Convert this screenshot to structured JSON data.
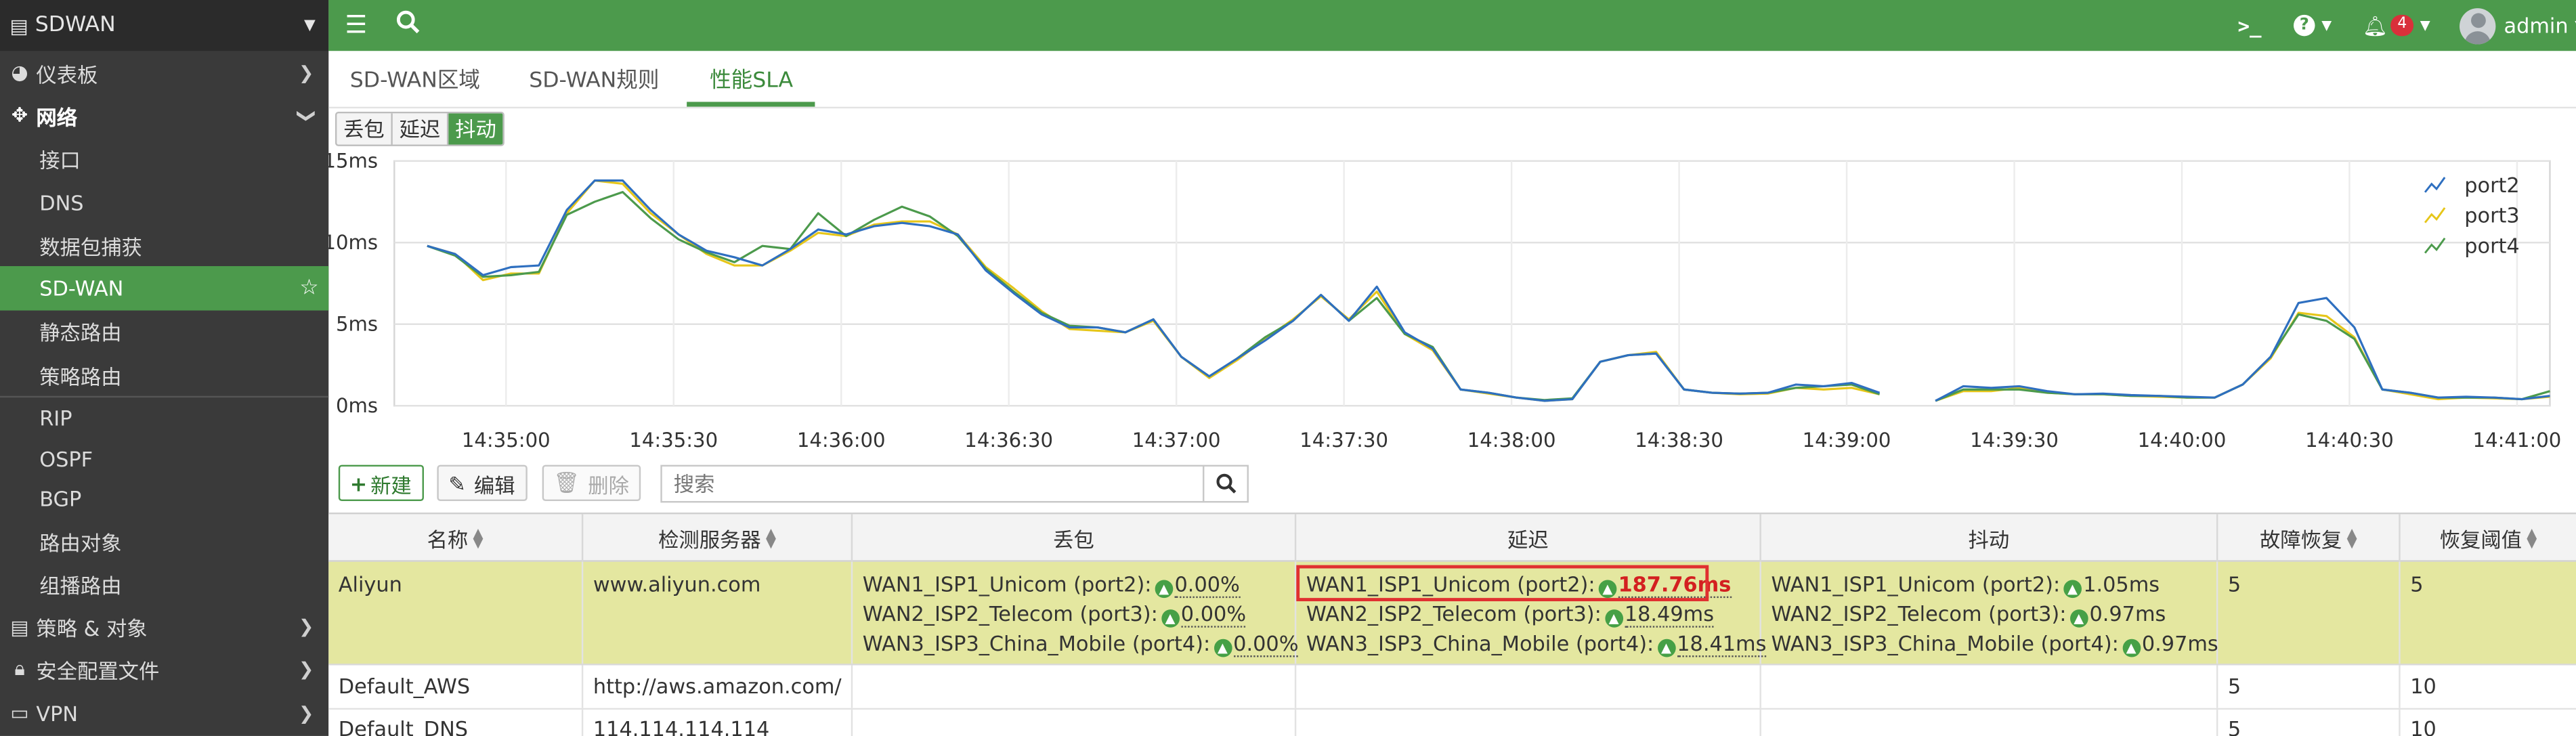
{
  "sidebar": {
    "header": "SDWAN",
    "items": [
      {
        "label": "仪表板",
        "icon": "dashboard-icon"
      },
      {
        "label": "网络",
        "icon": "network-icon"
      },
      {
        "label": "接口"
      },
      {
        "label": "DNS"
      },
      {
        "label": "数据包捕获"
      },
      {
        "label": "SD-WAN"
      },
      {
        "label": "静态路由"
      },
      {
        "label": "策略路由"
      },
      {
        "label": "RIP"
      },
      {
        "label": "OSPF"
      },
      {
        "label": "BGP"
      },
      {
        "label": "路由对象"
      },
      {
        "label": "组播路由"
      },
      {
        "label": "策略 & 对象",
        "icon": "policy-icon"
      },
      {
        "label": "安全配置文件",
        "icon": "lock-icon"
      },
      {
        "label": "VPN",
        "icon": "vpn-icon"
      }
    ]
  },
  "topbar": {
    "notification_count": "4",
    "user": "admin"
  },
  "tabs": [
    "SD-WAN区域",
    "SD-WAN规则",
    "性能SLA"
  ],
  "metric_buttons": [
    "丢包",
    "延迟",
    "抖动"
  ],
  "toolbar": {
    "new_label": "新建",
    "edit_label": "编辑",
    "delete_label": "删除",
    "search_placeholder": "搜索"
  },
  "table": {
    "headers": [
      "名称",
      "检测服务器",
      "丢包",
      "延迟",
      "抖动",
      "故障恢复",
      "恢复阈值"
    ],
    "rows": [
      {
        "name": "Aliyun",
        "server": "www.aliyun.com",
        "loss": [
          {
            "label": "WAN1_ISP1_Unicom (port2):",
            "value": "0.00%"
          },
          {
            "label": "WAN2_ISP2_Telecom (port3):",
            "value": "0.00%"
          },
          {
            "label": "WAN3_ISP3_China_Mobile (port4):",
            "value": "0.00%"
          }
        ],
        "latency": [
          {
            "label": "WAN1_ISP1_Unicom (port2):",
            "value": "187.76ms"
          },
          {
            "label": "WAN2_ISP2_Telecom (port3):",
            "value": "18.49ms"
          },
          {
            "label": "WAN3_ISP3_China_Mobile (port4):",
            "value": "18.41ms"
          }
        ],
        "jitter": [
          {
            "label": "WAN1_ISP1_Unicom (port2):",
            "value": "1.05ms"
          },
          {
            "label": "WAN2_ISP2_Telecom (port3):",
            "value": "0.97ms"
          },
          {
            "label": "WAN3_ISP3_China_Mobile (port4):",
            "value": "0.97ms"
          }
        ],
        "failures": "5",
        "restore": "5"
      },
      {
        "name": "Default_AWS",
        "server": "http://aws.amazon.com/",
        "failures": "5",
        "restore": "10"
      },
      {
        "name": "Default_DNS",
        "server": "114.114.114.114",
        "failures": "5",
        "restore": "10"
      }
    ]
  },
  "colors": {
    "port2": "#2e6fc0",
    "port3": "#e6c619",
    "port4": "#4c9a4c",
    "accent": "#4c9a4c"
  },
  "chart_data": {
    "type": "line",
    "ylim": [
      0,
      15
    ],
    "yticks": [
      "0ms",
      "5ms",
      "10ms",
      "15ms"
    ],
    "xticks": [
      "14:35:00",
      "14:35:30",
      "14:36:00",
      "14:36:30",
      "14:37:00",
      "14:37:30",
      "14:38:00",
      "14:38:30",
      "14:39:00",
      "14:39:30",
      "14:40:00",
      "14:40:30",
      "14:41:00"
    ],
    "legend_position": "top-right",
    "series": [
      {
        "name": "port2",
        "values": [
          9.8,
          9.3,
          8.0,
          8.5,
          8.6,
          12.0,
          13.8,
          13.8,
          12.0,
          10.5,
          9.5,
          9.1,
          8.6,
          9.6,
          10.8,
          10.5,
          11.0,
          11.2,
          11.0,
          10.5,
          8.3,
          6.9,
          5.6,
          4.8,
          4.8,
          4.5,
          5.3,
          3.0,
          1.8,
          2.9,
          4.0,
          5.2,
          6.8,
          5.2,
          7.3,
          4.5,
          3.5,
          1.0,
          0.8,
          0.5,
          0.3,
          0.4,
          2.7,
          3.1,
          3.2,
          1.0,
          0.8,
          0.75,
          0.8,
          1.3,
          1.2,
          1.4,
          0.8,
          null,
          0.3,
          1.2,
          1.1,
          1.2,
          0.9,
          0.7,
          0.75,
          0.65,
          0.6,
          0.55,
          0.5,
          1.3,
          3.0,
          6.3,
          6.6,
          4.8,
          1.0,
          0.8,
          0.5,
          0.55,
          0.5,
          0.4,
          0.6
        ]
      },
      {
        "name": "port3",
        "values": [
          9.8,
          9.3,
          7.7,
          8.1,
          8.1,
          11.8,
          13.8,
          13.6,
          11.8,
          10.5,
          9.3,
          8.6,
          8.6,
          9.5,
          10.6,
          10.4,
          11.1,
          11.3,
          11.3,
          10.5,
          8.5,
          7.2,
          5.8,
          4.7,
          4.6,
          4.5,
          5.2,
          3.0,
          1.7,
          2.8,
          4.1,
          5.3,
          6.7,
          5.3,
          7.0,
          4.4,
          3.4,
          1.0,
          0.75,
          0.5,
          0.3,
          0.4,
          2.7,
          3.1,
          3.3,
          1.0,
          0.8,
          0.7,
          0.75,
          1.1,
          1.0,
          1.1,
          0.7,
          null,
          0.3,
          0.9,
          0.9,
          1.1,
          0.8,
          0.7,
          0.7,
          0.6,
          0.55,
          0.5,
          0.5,
          1.3,
          2.9,
          5.7,
          5.5,
          4.2,
          1.0,
          0.7,
          0.4,
          0.5,
          0.45,
          0.4,
          0.55
        ]
      },
      {
        "name": "port4",
        "values": [
          9.8,
          9.2,
          7.9,
          8.0,
          8.2,
          11.7,
          12.5,
          13.1,
          11.5,
          10.2,
          9.4,
          8.8,
          9.8,
          9.6,
          11.8,
          10.4,
          11.4,
          12.2,
          11.6,
          10.4,
          8.4,
          7.0,
          5.7,
          4.9,
          4.8,
          4.5,
          5.3,
          3.0,
          1.8,
          2.9,
          4.2,
          5.2,
          6.8,
          5.2,
          6.6,
          4.4,
          3.6,
          1.0,
          0.8,
          0.5,
          0.35,
          0.45,
          2.7,
          3.1,
          3.2,
          1.0,
          0.8,
          0.75,
          0.8,
          1.1,
          1.2,
          1.3,
          0.7,
          null,
          0.3,
          1.0,
          1.0,
          1.0,
          0.8,
          0.7,
          0.7,
          0.6,
          0.6,
          0.5,
          0.5,
          1.3,
          3.0,
          5.6,
          5.2,
          4.1,
          1.0,
          0.8,
          0.5,
          0.5,
          0.5,
          0.4,
          0.9
        ]
      }
    ]
  }
}
